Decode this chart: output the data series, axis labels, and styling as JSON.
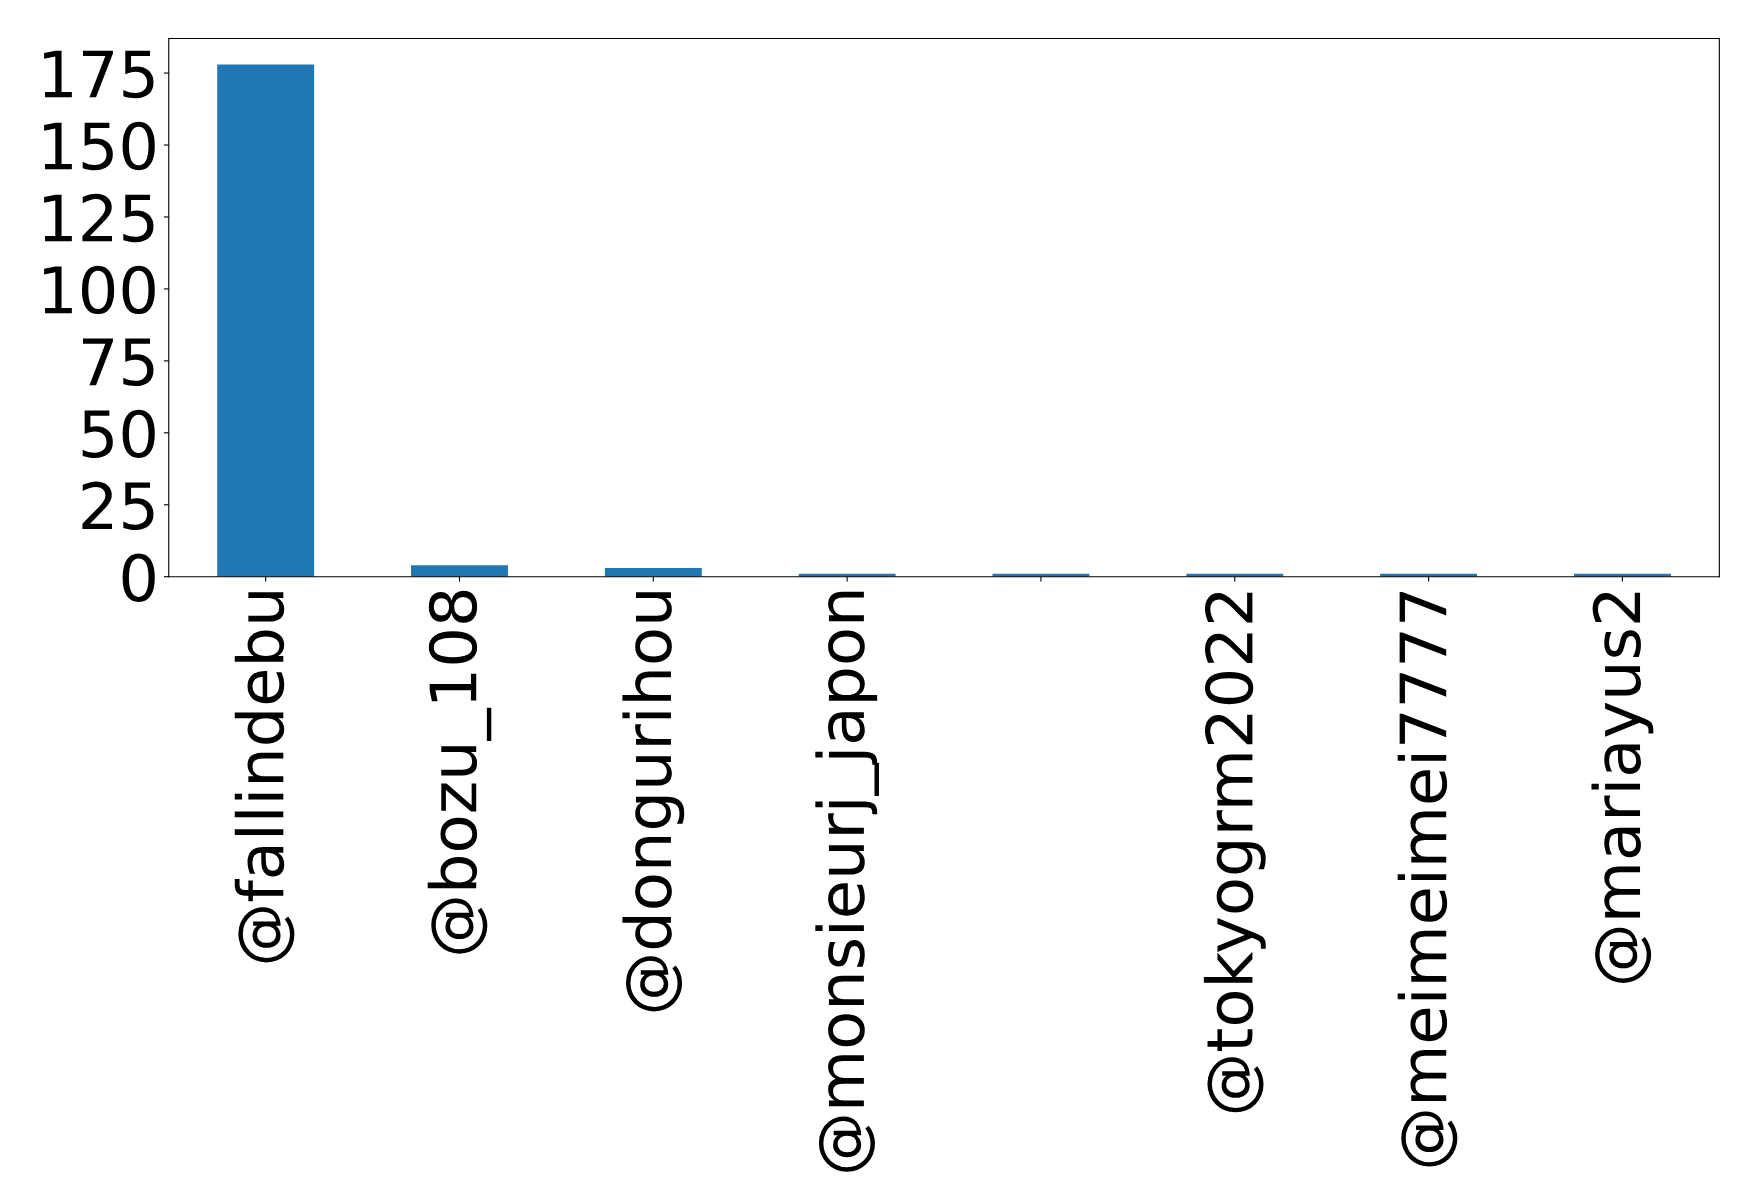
{
  "chart_data": {
    "type": "bar",
    "categories": [
      "@fallindebu",
      "@bozu_108",
      "@dongurihou",
      "@monsieurj_japon",
      null,
      "@tokyogrm2022",
      "@meimeimei7777",
      "@mariayus2"
    ],
    "values": [
      178,
      4,
      3,
      1,
      1,
      1,
      1,
      1
    ],
    "color": "#1f77b4",
    "ylim": [
      0,
      187
    ],
    "yticks": [
      0,
      25,
      50,
      75,
      100,
      125,
      150,
      175
    ],
    "grid": false,
    "legend": false
  }
}
